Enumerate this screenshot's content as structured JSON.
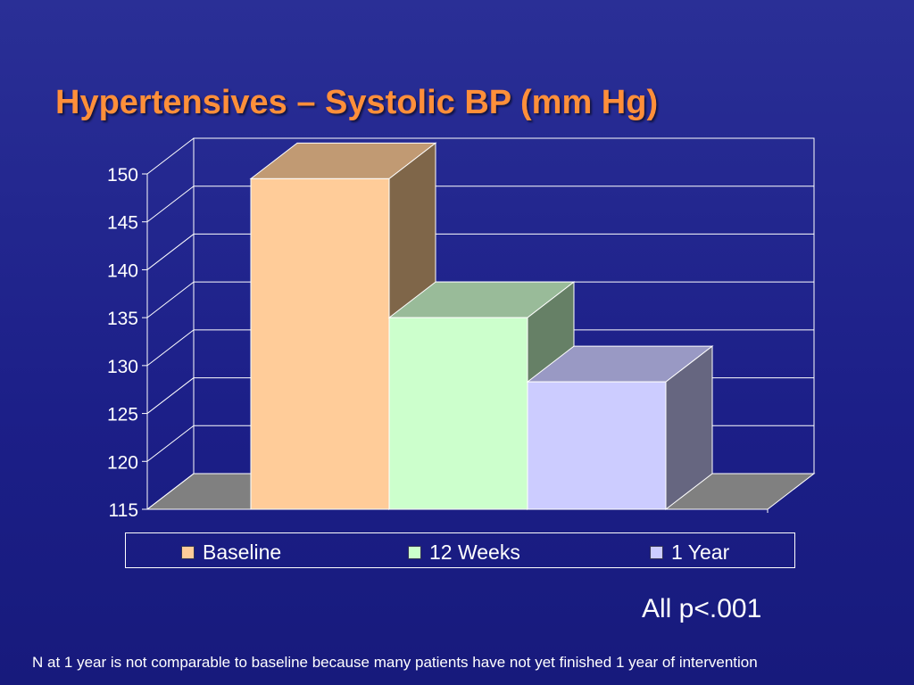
{
  "slide": {
    "title": "Hypertensives – Systolic BP (mm Hg)",
    "pvalue_note": "All p<.001",
    "footnote": "N at 1 year is not comparable to baseline because many patients have not yet finished 1 year of intervention"
  },
  "chart_data": {
    "type": "bar",
    "title": "Hypertensives – Systolic BP (mm Hg)",
    "xlabel": "",
    "ylabel": "",
    "ylim": [
      115,
      150
    ],
    "yticks": [
      115,
      120,
      125,
      130,
      135,
      140,
      145,
      150
    ],
    "ytick_labels": [
      "115",
      "120",
      "125",
      "130",
      "135",
      "140",
      "145",
      "150"
    ],
    "grid": true,
    "three_d": true,
    "legend_position": "bottom",
    "series": [
      {
        "name": "Baseline",
        "values": [
          149.5
        ],
        "color": "#ffcc99",
        "top_color": "#c19a73",
        "side_color": "#7f6649"
      },
      {
        "name": "12 Weeks",
        "values": [
          135
        ],
        "color": "#ccffcc",
        "top_color": "#99bb99",
        "side_color": "#668066"
      },
      {
        "name": "1 Year",
        "values": [
          128.3
        ],
        "color": "#ccccff",
        "top_color": "#9999c4",
        "side_color": "#666680"
      }
    ]
  }
}
